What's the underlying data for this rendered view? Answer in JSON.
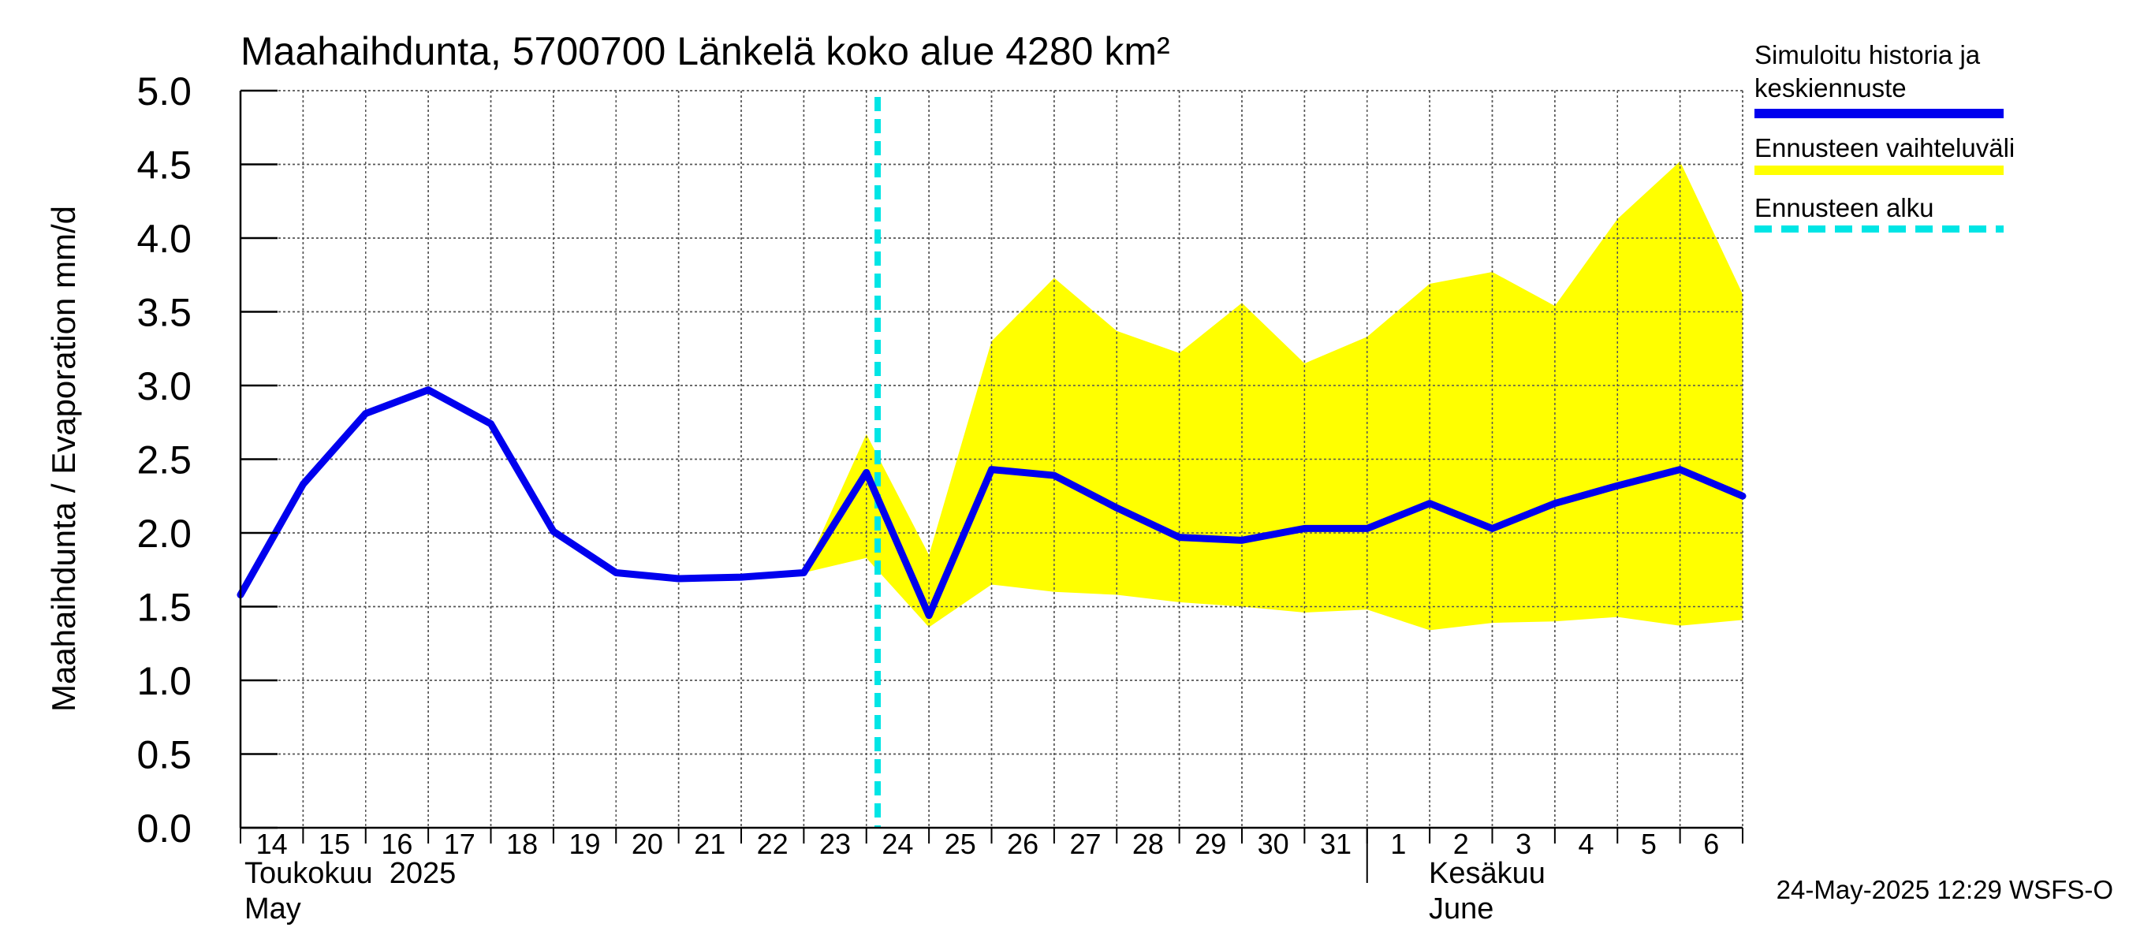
{
  "chart_data": {
    "type": "line",
    "title": "Maahaihdunta, 5700700 Länkelä koko alue 4280 km²",
    "ylabel": "Maahaihdunta / Evaporation   mm/d",
    "ylim": [
      0,
      5
    ],
    "yticks": [
      "0.0",
      "0.5",
      "1.0",
      "1.5",
      "2.0",
      "2.5",
      "3.0",
      "3.5",
      "4.0",
      "4.5",
      "5.0"
    ],
    "grid": true,
    "x_ticks": [
      "14",
      "15",
      "16",
      "17",
      "18",
      "19",
      "20",
      "21",
      "22",
      "23",
      "24",
      "25",
      "26",
      "27",
      "28",
      "29",
      "30",
      "31",
      "1",
      "2",
      "3",
      "4",
      "5",
      "6"
    ],
    "x_dates": [
      "2025-05-14",
      "2025-05-15",
      "2025-05-16",
      "2025-05-17",
      "2025-05-18",
      "2025-05-19",
      "2025-05-20",
      "2025-05-21",
      "2025-05-22",
      "2025-05-23",
      "2025-05-24",
      "2025-05-25",
      "2025-05-26",
      "2025-05-27",
      "2025-05-28",
      "2025-05-29",
      "2025-05-30",
      "2025-05-31",
      "2025-06-01",
      "2025-06-02",
      "2025-06-03",
      "2025-06-04",
      "2025-06-05",
      "2025-06-06",
      "2025-06-07"
    ],
    "month_labels": {
      "may_fi": "Toukokuu  2025",
      "may_en": "May",
      "june_fi": "Kesäkuu",
      "june_en": "June"
    },
    "forecast_start": "2025-05-24",
    "series": [
      {
        "name": "Simuloitu historia ja keskiennuste",
        "color": "#0000ee",
        "values": [
          1.58,
          2.33,
          2.81,
          2.97,
          2.74,
          2.01,
          1.73,
          1.69,
          1.7,
          1.73,
          2.41,
          1.44,
          2.43,
          2.39,
          2.17,
          1.97,
          1.95,
          2.03,
          2.03,
          2.2,
          2.03,
          2.2,
          2.32,
          2.43,
          2.25
        ]
      }
    ],
    "band": {
      "name": "Ennusteen vaihteluväli",
      "color": "#ffff00",
      "start_index": 9,
      "upper": [
        1.73,
        2.67,
        1.85,
        3.3,
        3.73,
        3.37,
        3.22,
        3.56,
        3.15,
        3.33,
        3.69,
        3.77,
        3.54,
        4.13,
        4.52,
        3.62
      ],
      "lower": [
        1.73,
        1.83,
        1.36,
        1.65,
        1.6,
        1.58,
        1.53,
        1.5,
        1.46,
        1.48,
        1.34,
        1.39,
        1.4,
        1.43,
        1.37,
        1.41
      ]
    },
    "legend": {
      "placement": "right",
      "items": [
        {
          "label_line1": "Simuloitu historia ja",
          "label_line2": "keskiennuste",
          "color": "#0000ee",
          "style": "solid"
        },
        {
          "label_line1": "Ennusteen vaihteluväli",
          "color": "#ffff00",
          "style": "solid"
        },
        {
          "label_line1": "Ennusteen alku",
          "color": "#00e5e5",
          "style": "dashed"
        }
      ]
    },
    "footer": "24-May-2025 12:29 WSFS-O"
  }
}
